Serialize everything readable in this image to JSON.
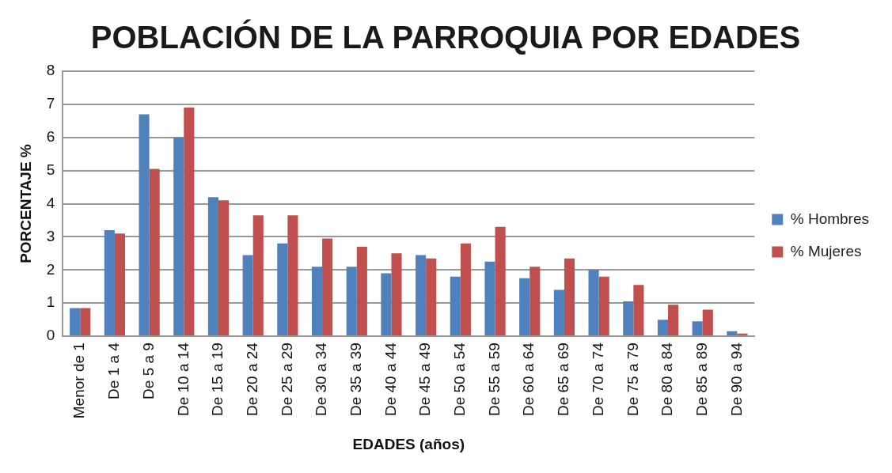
{
  "chart_data": {
    "type": "bar",
    "title": "POBLACIÓN DE LA PARROQUIA POR EDADES",
    "xlabel": "EDADES (años)",
    "ylabel": "PORCENTAJE %",
    "categories": [
      "Menor de 1",
      "De 1 a 4",
      "De 5 a 9",
      "De 10 a 14",
      "De 15 a 19",
      "De 20 a 24",
      "De 25 a 29",
      "De 30 a 34",
      "De 35 a 39",
      "De 40 a 44",
      "De 45 a 49",
      "De 50 a 54",
      "De 55 a 59",
      "De 60 a 64",
      "De 65 a 69",
      "De 70 a 74",
      "De 75 a 79",
      "De 80 a 84",
      "De 85 a 89",
      "De 90 a 94"
    ],
    "series": [
      {
        "name": "% Hombres",
        "color": "#4f81bd",
        "values": [
          0.85,
          3.2,
          6.7,
          6.0,
          4.2,
          2.45,
          2.8,
          2.1,
          2.1,
          1.9,
          2.45,
          1.8,
          2.25,
          1.75,
          1.4,
          2.0,
          1.05,
          0.5,
          0.45,
          0.15
        ]
      },
      {
        "name": "% Mujeres",
        "color": "#c0504d",
        "values": [
          0.85,
          3.1,
          5.05,
          6.9,
          4.1,
          3.65,
          3.65,
          2.95,
          2.7,
          2.5,
          2.35,
          2.8,
          3.3,
          2.1,
          2.35,
          1.8,
          1.55,
          0.95,
          0.8,
          0.08
        ]
      }
    ],
    "ylim": [
      0,
      8
    ],
    "yticks": [
      0,
      1,
      2,
      3,
      4,
      5,
      6,
      7,
      8
    ],
    "grid": "y",
    "legend": "right"
  }
}
